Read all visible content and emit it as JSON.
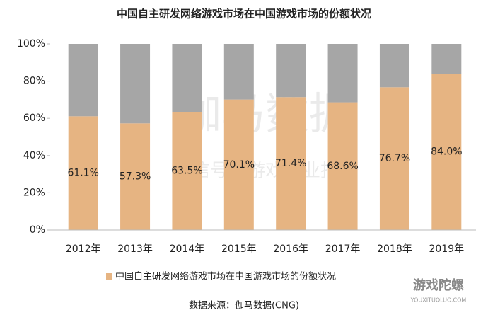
{
  "chart_data": {
    "type": "stacked_bar",
    "title": "中国自主研发网络游戏市场在中国游戏市场的份额状况",
    "categories": [
      "2012年",
      "2013年",
      "2014年",
      "2015年",
      "2016年",
      "2017年",
      "2018年",
      "2019年"
    ],
    "series": [
      {
        "name": "中国自主研发网络游戏市场在中国游戏市场的份额状况",
        "color": "#e6b482",
        "values": [
          61.1,
          57.3,
          63.5,
          70.1,
          71.4,
          68.6,
          76.7,
          84.0
        ],
        "value_labels": [
          "61.1%",
          "57.3%",
          "63.5%",
          "70.1%",
          "71.4%",
          "68.6%",
          "76.7%",
          "84.0%"
        ]
      },
      {
        "color": "#a6a6a6",
        "values": [
          38.9,
          42.7,
          36.5,
          29.9,
          28.6,
          31.4,
          23.3,
          16.0
        ]
      }
    ],
    "ylim": [
      0,
      100
    ],
    "yticks": [
      {
        "value": 0,
        "label": "0%"
      },
      {
        "value": 20,
        "label": "20%"
      },
      {
        "value": 40,
        "label": "40%"
      },
      {
        "value": 60,
        "label": "60%"
      },
      {
        "value": 80,
        "label": "80%"
      },
      {
        "value": 100,
        "label": "100%"
      }
    ],
    "legend": "bottom",
    "source": "数据来源：伽马数据(CNG)",
    "watermarks": [
      "伽马数据",
      "微信号：游戏产业报告",
      "游戏陀螺",
      "YOUXITUOLUO.COM"
    ]
  }
}
